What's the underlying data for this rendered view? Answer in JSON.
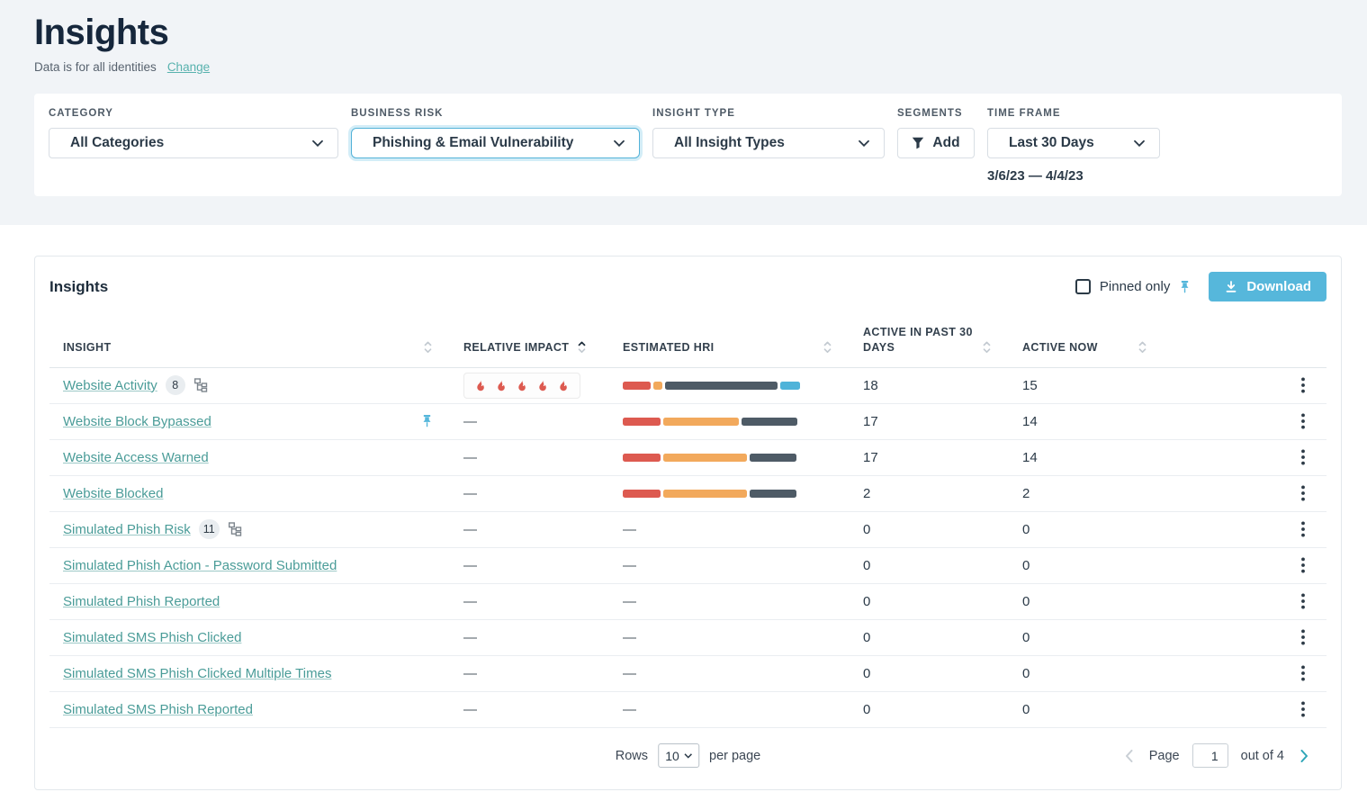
{
  "page": {
    "title": "Insights",
    "subtitle": "Data is for all identities",
    "change_link": "Change"
  },
  "filters": {
    "category": {
      "label": "CATEGORY",
      "value": "All Categories"
    },
    "business_risk": {
      "label": "BUSINESS RISK",
      "value": "Phishing & Email Vulnerability"
    },
    "insight_type": {
      "label": "INSIGHT TYPE",
      "value": "All Insight Types"
    },
    "segments": {
      "label": "SEGMENTS",
      "button": "Add"
    },
    "time_frame": {
      "label": "TIME FRAME",
      "value": "Last 30 Days",
      "range": "3/6/23 — 4/4/23"
    }
  },
  "card": {
    "title": "Insights",
    "pinned_only_label": "Pinned only",
    "download_label": "Download"
  },
  "table": {
    "columns": [
      {
        "label": "INSIGHT",
        "sort": "both"
      },
      {
        "label": "RELATIVE IMPACT",
        "sort": "up"
      },
      {
        "label": "ESTIMATED HRI",
        "sort": "both"
      },
      {
        "label": "ACTIVE IN PAST 30 DAYS",
        "sort": "both"
      },
      {
        "label": "ACTIVE NOW",
        "sort": "both"
      }
    ],
    "rows": [
      {
        "insight": "Website Activity",
        "badge": "8",
        "tree_icon": true,
        "pinned": false,
        "impact_flames": 5,
        "impact": "",
        "hri": [
          [
            "red",
            31
          ],
          [
            "orange",
            10
          ],
          [
            "slate",
            125
          ],
          [
            "blue",
            22
          ]
        ],
        "active_past_30": "18",
        "active_now": "15"
      },
      {
        "insight": "Website Block Bypassed",
        "badge": "",
        "tree_icon": false,
        "pinned": true,
        "impact_flames": 0,
        "impact": "—",
        "hri": [
          [
            "red",
            42
          ],
          [
            "orange",
            84
          ],
          [
            "slate",
            62
          ]
        ],
        "active_past_30": "17",
        "active_now": "14"
      },
      {
        "insight": "Website Access Warned",
        "badge": "",
        "tree_icon": false,
        "pinned": false,
        "impact_flames": 0,
        "impact": "—",
        "hri": [
          [
            "red",
            42
          ],
          [
            "orange",
            93
          ],
          [
            "slate",
            52
          ]
        ],
        "active_past_30": "17",
        "active_now": "14"
      },
      {
        "insight": "Website Blocked",
        "badge": "",
        "tree_icon": false,
        "pinned": false,
        "impact_flames": 0,
        "impact": "—",
        "hri": [
          [
            "red",
            42
          ],
          [
            "orange",
            93
          ],
          [
            "slate",
            52
          ]
        ],
        "active_past_30": "2",
        "active_now": "2"
      },
      {
        "insight": "Simulated Phish Risk",
        "badge": "11",
        "tree_icon": true,
        "pinned": false,
        "impact_flames": 0,
        "impact": "—",
        "hri": null,
        "hri_dash": "—",
        "active_past_30": "0",
        "active_now": "0"
      },
      {
        "insight": "Simulated Phish Action - Password Submitted",
        "badge": "",
        "tree_icon": false,
        "pinned": false,
        "impact_flames": 0,
        "impact": "—",
        "hri": null,
        "hri_dash": "—",
        "active_past_30": "0",
        "active_now": "0"
      },
      {
        "insight": "Simulated Phish Reported",
        "badge": "",
        "tree_icon": false,
        "pinned": false,
        "impact_flames": 0,
        "impact": "—",
        "hri": null,
        "hri_dash": "—",
        "active_past_30": "0",
        "active_now": "0"
      },
      {
        "insight": "Simulated SMS Phish Clicked",
        "badge": "",
        "tree_icon": false,
        "pinned": false,
        "impact_flames": 0,
        "impact": "—",
        "hri": null,
        "hri_dash": "—",
        "active_past_30": "0",
        "active_now": "0"
      },
      {
        "insight": "Simulated SMS Phish Clicked Multiple Times",
        "badge": "",
        "tree_icon": false,
        "pinned": false,
        "impact_flames": 0,
        "impact": "—",
        "hri": null,
        "hri_dash": "—",
        "active_past_30": "0",
        "active_now": "0"
      },
      {
        "insight": "Simulated SMS Phish Reported",
        "badge": "",
        "tree_icon": false,
        "pinned": false,
        "impact_flames": 0,
        "impact": "—",
        "hri": null,
        "hri_dash": "—",
        "active_past_30": "0",
        "active_now": "0"
      }
    ]
  },
  "pagination": {
    "rows_label": "Rows",
    "rows_value": "10",
    "per_page_label": "per page",
    "page_label": "Page",
    "page_value": "1",
    "out_of_label": "out of 4"
  },
  "colors": {
    "top_bg": "#f1f4f7",
    "link_teal": "#4a9c98",
    "change_teal": "#58b2ae",
    "accent_blue": "#56b7db",
    "risk_border": "#53b2d8",
    "bar_red": "#dd5a50",
    "bar_orange": "#f2a95c",
    "bar_slate": "#4e5b66",
    "bar_blue": "#4fb3d9",
    "flame": "#dd5a50",
    "pagination_next": "#2fa6b8"
  },
  "icons": {
    "segments_button": "funnel-icon",
    "download_button": "download-icon",
    "pinned_toggle": "pin-icon",
    "row_expand": "org-tree-icon",
    "row_menu": "kebab-icon"
  }
}
